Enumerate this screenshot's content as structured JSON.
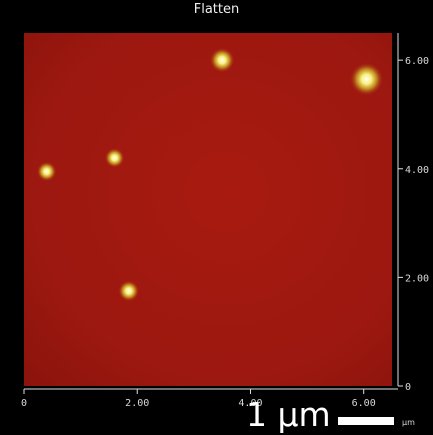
{
  "window": {
    "title": "Flatten"
  },
  "image": {
    "description_colors": {
      "background": "#000000",
      "substrate": "#a01810",
      "particle_core": "#fff060",
      "particle_glow": "#d8c020"
    },
    "particles": [
      {
        "x": 3.5,
        "y": 6.0,
        "size": 1.0
      },
      {
        "x": 6.05,
        "y": 5.65,
        "size": 1.35
      },
      {
        "x": 1.6,
        "y": 4.2,
        "size": 0.8
      },
      {
        "x": 0.4,
        "y": 3.95,
        "size": 0.8
      },
      {
        "x": 1.85,
        "y": 1.75,
        "size": 0.85
      }
    ]
  },
  "axes": {
    "x": {
      "range": [
        0,
        6.5
      ],
      "ticks": [
        0,
        2,
        4,
        6
      ],
      "tick_labels": [
        "0",
        "2.00",
        "4.00",
        "6.00"
      ]
    },
    "y": {
      "range": [
        0,
        6.5
      ],
      "ticks": [
        0,
        2,
        4,
        6
      ],
      "tick_labels": [
        "0",
        "2.00",
        "4.00",
        "6.00"
      ]
    }
  },
  "scale_bar": {
    "label": "1 µm",
    "unit_label": "µm"
  }
}
